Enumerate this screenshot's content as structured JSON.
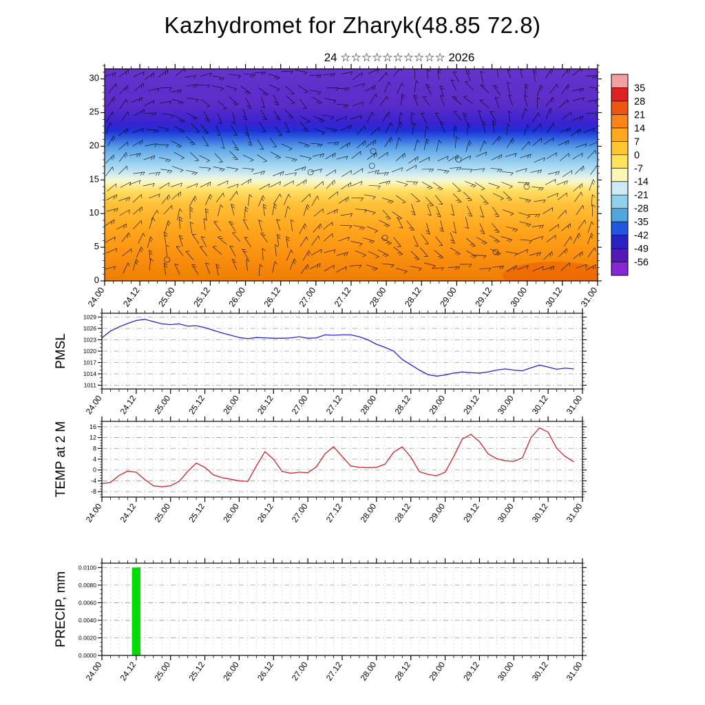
{
  "title": "Kazhydromet for Zharyk(48.85 72.8)",
  "subtitle": "24 ☆☆☆☆☆☆☆☆☆☆ 2026",
  "xticks": [
    "24.00",
    "24.12",
    "25.00",
    "25.12",
    "26.00",
    "26.12",
    "27.00",
    "27.12",
    "28.00",
    "28.12",
    "29.00",
    "29.12",
    "30.00",
    "30.12",
    "31.00"
  ],
  "chart_data": [
    {
      "id": "cross-section",
      "type": "heatmap",
      "title": "24 ☆☆☆☆☆☆☆☆☆☆ 2026",
      "description": "Time-height temperature cross-section with dense wind-barb overlay",
      "xlim": [
        24,
        31
      ],
      "ylim": [
        0,
        31.5
      ],
      "yticks": [
        0,
        5,
        10,
        15,
        20,
        25,
        30
      ],
      "bands": [
        {
          "h": 0,
          "color": "#ef7c04"
        },
        {
          "h": 4,
          "color": "#fb9210"
        },
        {
          "h": 8,
          "color": "#ffa81e"
        },
        {
          "h": 11.5,
          "color": "#ffc23a"
        },
        {
          "h": 13.5,
          "color": "#ffe066"
        },
        {
          "h": 14.6,
          "color": "#fbf7c0"
        },
        {
          "h": 15.3,
          "color": "#e9f4e4"
        },
        {
          "h": 16.3,
          "color": "#bfe4f4"
        },
        {
          "h": 18,
          "color": "#8cc8ee"
        },
        {
          "h": 19.8,
          "color": "#5aa0e6"
        },
        {
          "h": 21.2,
          "color": "#2f62e0"
        },
        {
          "h": 22.3,
          "color": "#1f2fd6"
        },
        {
          "h": 23.5,
          "color": "#3a22cf"
        },
        {
          "h": 26,
          "color": "#5b2cc9"
        },
        {
          "h": 31.5,
          "color": "#6633cc"
        }
      ],
      "colorbar": {
        "labels": [
          35,
          28,
          21,
          14,
          7,
          0,
          -7,
          -14,
          -21,
          -28,
          -35,
          -42,
          -49,
          -56
        ],
        "colors": [
          "#f2a0a0",
          "#dd2020",
          "#ee5510",
          "#ff8418",
          "#ffa81e",
          "#ffc62e",
          "#ffe45a",
          "#fdf6b6",
          "#cdeaf6",
          "#8fd0ea",
          "#4fa6e0",
          "#2257dd",
          "#2a22c4",
          "#5518bb",
          "#8826d6"
        ]
      },
      "barbs": {
        "spacing": 20,
        "seed": 11,
        "color": "#000000"
      }
    },
    {
      "id": "pmsl",
      "type": "line",
      "ylabel": "PMSL",
      "color": "#2222cc",
      "ylim": [
        1011,
        1029
      ],
      "yticks": [
        1011,
        1014,
        1017,
        1020,
        1023,
        1026,
        1029
      ],
      "x_start": 24.0,
      "x_step": 0.125,
      "values": [
        1023.5,
        1025.3,
        1026.4,
        1027.3,
        1028.1,
        1028.4,
        1027.8,
        1027.2,
        1027.0,
        1027.2,
        1026.6,
        1026.7,
        1026.2,
        1025.5,
        1024.8,
        1024.2,
        1023.6,
        1023.3,
        1023.6,
        1023.5,
        1023.4,
        1023.4,
        1023.5,
        1023.8,
        1023.4,
        1023.5,
        1024.3,
        1024.2,
        1024.3,
        1024.3,
        1023.8,
        1023.0,
        1021.8,
        1021.0,
        1020.0,
        1017.8,
        1016.4,
        1015.0,
        1013.8,
        1013.4,
        1013.7,
        1014.2,
        1014.5,
        1014.3,
        1014.2,
        1014.5,
        1015.0,
        1015.3,
        1015.0,
        1014.8,
        1015.6,
        1016.3,
        1015.8,
        1015.2,
        1015.5,
        1015.3
      ]
    },
    {
      "id": "temp2m",
      "type": "line",
      "ylabel": "TEMP at 2 M",
      "color": "#cc2222",
      "ylim": [
        -8,
        16
      ],
      "yticks": [
        -8,
        -4,
        0,
        4,
        8,
        12,
        16
      ],
      "x_start": 24.0,
      "x_step": 0.125,
      "values": [
        -5.0,
        -4.6,
        -2.0,
        -0.4,
        -0.8,
        -3.5,
        -5.8,
        -6.2,
        -5.8,
        -4.2,
        -0.5,
        2.6,
        1.0,
        -1.8,
        -2.8,
        -3.4,
        -4.0,
        -4.2,
        1.5,
        6.8,
        4.0,
        -0.5,
        -1.2,
        -0.8,
        -1.0,
        1.2,
        6.0,
        8.6,
        5.0,
        1.5,
        1.0,
        0.9,
        1.0,
        2.2,
        6.6,
        8.6,
        4.8,
        -0.6,
        -1.6,
        -2.1,
        -0.8,
        5.0,
        11.5,
        13.2,
        10.5,
        6.0,
        4.2,
        3.4,
        3.2,
        4.5,
        12.0,
        15.6,
        14.0,
        8.0,
        5.0,
        3.0
      ]
    },
    {
      "id": "precip",
      "type": "bar",
      "ylabel": "PRECIP, mm",
      "color": "#00dd00",
      "ylim": [
        0.0,
        0.01
      ],
      "yticks": [
        0.0,
        0.002,
        0.004,
        0.006,
        0.008,
        0.01
      ],
      "bars": [
        {
          "x_from": 24.4375,
          "x_to": 24.5625,
          "value": 0.01
        }
      ]
    }
  ]
}
